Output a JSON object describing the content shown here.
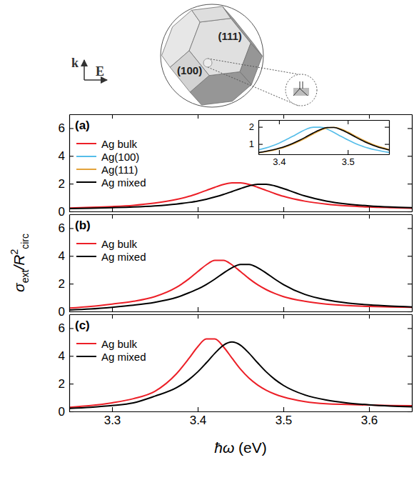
{
  "illustration": {
    "facets": {
      "hexagon": "(111)",
      "square": "(100)"
    },
    "wave_vector": "k",
    "field": "E"
  },
  "chart_data": [
    {
      "type": "line",
      "title": "(a)",
      "x": [
        3.25,
        3.275,
        3.3,
        3.325,
        3.35,
        3.375,
        3.39,
        3.4,
        3.41,
        3.42,
        3.43,
        3.44,
        3.45,
        3.46,
        3.47,
        3.48,
        3.49,
        3.5,
        3.525,
        3.55,
        3.575,
        3.6,
        3.625,
        3.65
      ],
      "xlim": [
        3.25,
        3.65
      ],
      "xticks": [
        3.3,
        3.4,
        3.5,
        3.6
      ],
      "ylim": [
        0,
        7
      ],
      "yticks": [
        0,
        2,
        4,
        6
      ],
      "tick_labels": "y",
      "legend": "upper left",
      "series": [
        {
          "name": "Ag bulk",
          "color": "#ec1f27",
          "values": [
            0.25,
            0.29,
            0.35,
            0.44,
            0.6,
            0.86,
            1.09,
            1.29,
            1.51,
            1.74,
            1.94,
            2.06,
            2.06,
            1.94,
            1.74,
            1.51,
            1.29,
            1.09,
            0.74,
            0.53,
            0.4,
            0.32,
            0.27,
            0.23
          ]
        },
        {
          "name": "Ag mixed",
          "color": "#000000",
          "values": [
            0.21,
            0.23,
            0.27,
            0.32,
            0.4,
            0.53,
            0.65,
            0.75,
            0.88,
            1.04,
            1.22,
            1.43,
            1.65,
            1.84,
            1.96,
            1.96,
            1.84,
            1.65,
            1.12,
            0.75,
            0.53,
            0.4,
            0.32,
            0.27
          ]
        }
      ],
      "inset": {
        "type": "line",
        "x": [
          3.37,
          3.38,
          3.39,
          3.4,
          3.41,
          3.42,
          3.43,
          3.44,
          3.45,
          3.46,
          3.47,
          3.48,
          3.49,
          3.5,
          3.51,
          3.52,
          3.53,
          3.54,
          3.55,
          3.56
        ],
        "xlim": [
          3.37,
          3.56
        ],
        "xticks": [
          3.4,
          3.5
        ],
        "ylim": [
          0.4,
          2.4
        ],
        "yticks": [
          1,
          2
        ],
        "series": [
          {
            "name": "Ag(100)",
            "color": "#55bde9",
            "values": [
              0.66,
              0.76,
              0.89,
              1.05,
              1.24,
              1.45,
              1.67,
              1.87,
              1.98,
              1.98,
              1.87,
              1.67,
              1.45,
              1.24,
              1.05,
              0.89,
              0.76,
              0.66,
              0.58,
              0.51
            ]
          },
          {
            "name": "Ag(111)",
            "color": "#e3a33a",
            "values": [
              0.48,
              0.55,
              0.62,
              0.72,
              0.84,
              0.99,
              1.17,
              1.37,
              1.59,
              1.79,
              1.93,
              1.97,
              1.88,
              1.7,
              1.49,
              1.28,
              1.09,
              0.92,
              0.79,
              0.68
            ]
          },
          {
            "name": "Ag mixed",
            "color": "#000000",
            "values": [
              0.5,
              0.57,
              0.65,
              0.75,
              0.88,
              1.04,
              1.22,
              1.43,
              1.65,
              1.84,
              1.96,
              1.96,
              1.84,
              1.65,
              1.43,
              1.22,
              1.04,
              0.88,
              0.75,
              0.65
            ]
          }
        ]
      }
    },
    {
      "type": "line",
      "title": "(b)",
      "x": [
        3.25,
        3.275,
        3.3,
        3.325,
        3.35,
        3.375,
        3.39,
        3.4,
        3.41,
        3.42,
        3.43,
        3.44,
        3.45,
        3.46,
        3.47,
        3.48,
        3.49,
        3.5,
        3.525,
        3.55,
        3.575,
        3.6,
        3.625,
        3.65
      ],
      "xlim": [
        3.25,
        3.65
      ],
      "xticks": [
        3.3,
        3.4,
        3.5,
        3.6
      ],
      "ylim": [
        0,
        7
      ],
      "yticks": [
        0,
        2,
        4,
        6
      ],
      "tick_labels": "y",
      "legend": "upper left",
      "y_label": [
        "σ",
        "ext",
        "/R",
        "2",
        "circ"
      ],
      "series": [
        {
          "name": "Ag bulk",
          "color": "#ec1f27",
          "values": [
            0.24,
            0.36,
            0.53,
            0.73,
            1.07,
            1.73,
            2.36,
            2.87,
            3.36,
            3.68,
            3.68,
            3.36,
            2.87,
            2.36,
            1.92,
            1.57,
            1.29,
            1.07,
            0.73,
            0.53,
            0.42,
            0.36,
            0.32,
            0.3
          ]
        },
        {
          "name": "Ag mixed",
          "color": "#000000",
          "values": [
            0.1,
            0.18,
            0.3,
            0.45,
            0.66,
            1.0,
            1.35,
            1.61,
            1.94,
            2.33,
            2.76,
            3.15,
            3.39,
            3.39,
            3.15,
            2.76,
            2.33,
            1.94,
            1.23,
            0.84,
            0.61,
            0.47,
            0.38,
            0.32
          ]
        }
      ]
    },
    {
      "type": "line",
      "title": "(c)",
      "x": [
        3.25,
        3.275,
        3.3,
        3.325,
        3.35,
        3.375,
        3.39,
        3.4,
        3.41,
        3.42,
        3.43,
        3.44,
        3.45,
        3.46,
        3.47,
        3.48,
        3.49,
        3.5,
        3.525,
        3.55,
        3.575,
        3.6,
        3.625,
        3.65
      ],
      "xlim": [
        3.25,
        3.65
      ],
      "xticks": [
        3.3,
        3.4,
        3.5,
        3.6
      ],
      "ylim": [
        0,
        7
      ],
      "yticks": [
        0,
        2,
        4,
        6
      ],
      "legend": "upper left",
      "x_label": [
        "ħω",
        " (eV)"
      ],
      "series": [
        {
          "name": "Ag bulk",
          "color": "#ec1f27",
          "values": [
            0.3,
            0.42,
            0.62,
            0.92,
            1.45,
            2.7,
            3.84,
            4.66,
            5.22,
            5.22,
            4.66,
            3.84,
            3.04,
            2.39,
            1.9,
            1.53,
            1.25,
            1.04,
            0.71,
            0.55,
            0.5,
            0.46,
            0.43,
            0.41
          ]
        },
        {
          "name": "Ag mixed",
          "color": "#000000",
          "values": [
            0.22,
            0.3,
            0.42,
            0.62,
            1.1,
            1.7,
            2.31,
            2.85,
            3.5,
            4.19,
            4.77,
            5.0,
            4.77,
            4.19,
            3.5,
            2.85,
            2.31,
            1.88,
            1.19,
            0.82,
            0.61,
            0.48,
            0.39,
            0.33
          ]
        }
      ]
    }
  ]
}
